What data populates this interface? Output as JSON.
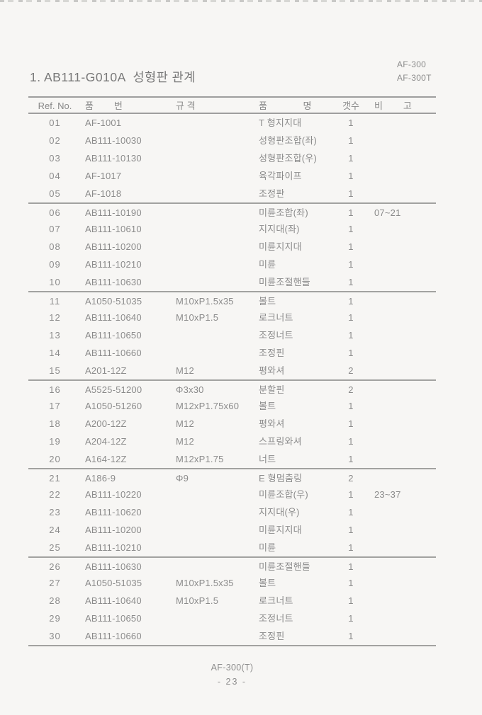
{
  "page": {
    "title": "1. AB111-G010A  성형판 관계",
    "models": [
      "AF-300",
      "AF-300T"
    ],
    "footer": {
      "model": "AF-300(T)",
      "page_number": "- 23 -"
    }
  },
  "table": {
    "headers": {
      "ref": "Ref. No.",
      "part": "품        번",
      "spec": "규 격",
      "name": "품              명",
      "qty": "갯수",
      "remark": "비        고"
    },
    "rows": [
      {
        "ref": "01",
        "part_no": "AF-1001",
        "spec": "",
        "name": "T 형지지대",
        "qty": "1",
        "remark": ""
      },
      {
        "ref": "02",
        "part_no": "AB111-10030",
        "spec": "",
        "name": "성형판조합(좌)",
        "qty": "1",
        "remark": ""
      },
      {
        "ref": "03",
        "part_no": "AB111-10130",
        "spec": "",
        "name": "성형판조합(우)",
        "qty": "1",
        "remark": ""
      },
      {
        "ref": "04",
        "part_no": "AF-1017",
        "spec": "",
        "name": "육각파이프",
        "qty": "1",
        "remark": ""
      },
      {
        "ref": "05",
        "part_no": "AF-1018",
        "spec": "",
        "name": "조정판",
        "qty": "1",
        "remark": ""
      },
      {
        "ref": "06",
        "part_no": "AB111-10190",
        "spec": "",
        "name": "미륜조합(좌)",
        "qty": "1",
        "remark": "07~21"
      },
      {
        "ref": "07",
        "part_no": "AB111-10610",
        "spec": "",
        "name": "지지대(좌)",
        "qty": "1",
        "remark": ""
      },
      {
        "ref": "08",
        "part_no": "AB111-10200",
        "spec": "",
        "name": "미륜지지대",
        "qty": "1",
        "remark": ""
      },
      {
        "ref": "09",
        "part_no": "AB111-10210",
        "spec": "",
        "name": "미륜",
        "qty": "1",
        "remark": ""
      },
      {
        "ref": "10",
        "part_no": "AB111-10630",
        "spec": "",
        "name": "미륜조절핸들",
        "qty": "1",
        "remark": ""
      },
      {
        "ref": "11",
        "part_no": "A1050-51035",
        "spec": "M10xP1.5x35",
        "name": "볼트",
        "qty": "1",
        "remark": ""
      },
      {
        "ref": "12",
        "part_no": "AB111-10640",
        "spec": "M10xP1.5",
        "name": "로크너트",
        "qty": "1",
        "remark": ""
      },
      {
        "ref": "13",
        "part_no": "AB111-10650",
        "spec": "",
        "name": "조정너트",
        "qty": "1",
        "remark": ""
      },
      {
        "ref": "14",
        "part_no": "AB111-10660",
        "spec": "",
        "name": "조정핀",
        "qty": "1",
        "remark": ""
      },
      {
        "ref": "15",
        "part_no": "A201-12Z",
        "spec": "M12",
        "name": "평와셔",
        "qty": "2",
        "remark": ""
      },
      {
        "ref": "16",
        "part_no": "A5525-51200",
        "spec": "Φ3x30",
        "name": "분할핀",
        "qty": "2",
        "remark": ""
      },
      {
        "ref": "17",
        "part_no": "A1050-51260",
        "spec": "M12xP1.75x60",
        "name": "볼트",
        "qty": "1",
        "remark": ""
      },
      {
        "ref": "18",
        "part_no": "A200-12Z",
        "spec": "M12",
        "name": "평와셔",
        "qty": "1",
        "remark": ""
      },
      {
        "ref": "19",
        "part_no": "A204-12Z",
        "spec": "M12",
        "name": "스프링와셔",
        "qty": "1",
        "remark": ""
      },
      {
        "ref": "20",
        "part_no": "A164-12Z",
        "spec": "M12xP1.75",
        "name": "너트",
        "qty": "1",
        "remark": ""
      },
      {
        "ref": "21",
        "part_no": "A186-9",
        "spec": "Φ9",
        "name": "E 형멈춤링",
        "qty": "2",
        "remark": ""
      },
      {
        "ref": "22",
        "part_no": "AB111-10220",
        "spec": "",
        "name": "미륜조합(우)",
        "qty": "1",
        "remark": "23~37"
      },
      {
        "ref": "23",
        "part_no": "AB111-10620",
        "spec": "",
        "name": "지지대(우)",
        "qty": "1",
        "remark": ""
      },
      {
        "ref": "24",
        "part_no": "AB111-10200",
        "spec": "",
        "name": "미륜지지대",
        "qty": "1",
        "remark": ""
      },
      {
        "ref": "25",
        "part_no": "AB111-10210",
        "spec": "",
        "name": "미륜",
        "qty": "1",
        "remark": ""
      },
      {
        "ref": "26",
        "part_no": "AB111-10630",
        "spec": "",
        "name": "미륜조절핸들",
        "qty": "1",
        "remark": ""
      },
      {
        "ref": "27",
        "part_no": "A1050-51035",
        "spec": "M10xP1.5x35",
        "name": "볼트",
        "qty": "1",
        "remark": ""
      },
      {
        "ref": "28",
        "part_no": "AB111-10640",
        "spec": "M10xP1.5",
        "name": "로크너트",
        "qty": "1",
        "remark": ""
      },
      {
        "ref": "29",
        "part_no": "AB111-10650",
        "spec": "",
        "name": "조정너트",
        "qty": "1",
        "remark": ""
      },
      {
        "ref": "30",
        "part_no": "AB111-10660",
        "spec": "",
        "name": "조정핀",
        "qty": "1",
        "remark": ""
      }
    ]
  }
}
